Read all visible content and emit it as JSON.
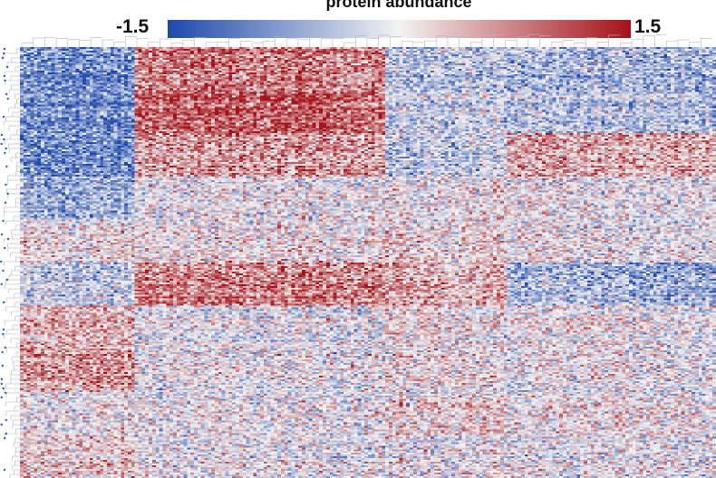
{
  "chart_data": {
    "type": "heatmap",
    "title": "protein abundance",
    "colorbar": {
      "min_label": "-1.5",
      "max_label": "1.5",
      "vmin": -1.5,
      "vmax": 1.5,
      "low_color": "#1c49ab",
      "mid_color": "#f3f3f3",
      "high_color": "#a41218"
    },
    "xlabel": "",
    "ylabel": "",
    "dendrograms": "top and left",
    "n_columns": 200,
    "n_rows": 240,
    "column_groups": [
      {
        "start": 0,
        "end": 33,
        "band_means": [
          -0.9,
          -0.9,
          -0.9,
          -0.6,
          0.1,
          -0.3,
          0.4,
          0.6,
          0.0,
          0.3
        ]
      },
      {
        "start": 33,
        "end": 105,
        "band_means": [
          0.8,
          1.0,
          0.6,
          0.0,
          0.1,
          0.8,
          -0.1,
          0.0,
          0.0,
          0.0
        ]
      },
      {
        "start": 105,
        "end": 140,
        "band_means": [
          -0.4,
          -0.3,
          -0.3,
          0.1,
          0.2,
          0.5,
          0.1,
          0.1,
          0.2,
          0.0
        ]
      },
      {
        "start": 140,
        "end": 200,
        "band_means": [
          -0.5,
          -0.4,
          0.5,
          0.0,
          0.0,
          -0.5,
          0.0,
          0.0,
          0.1,
          0.0
        ]
      }
    ]
  }
}
